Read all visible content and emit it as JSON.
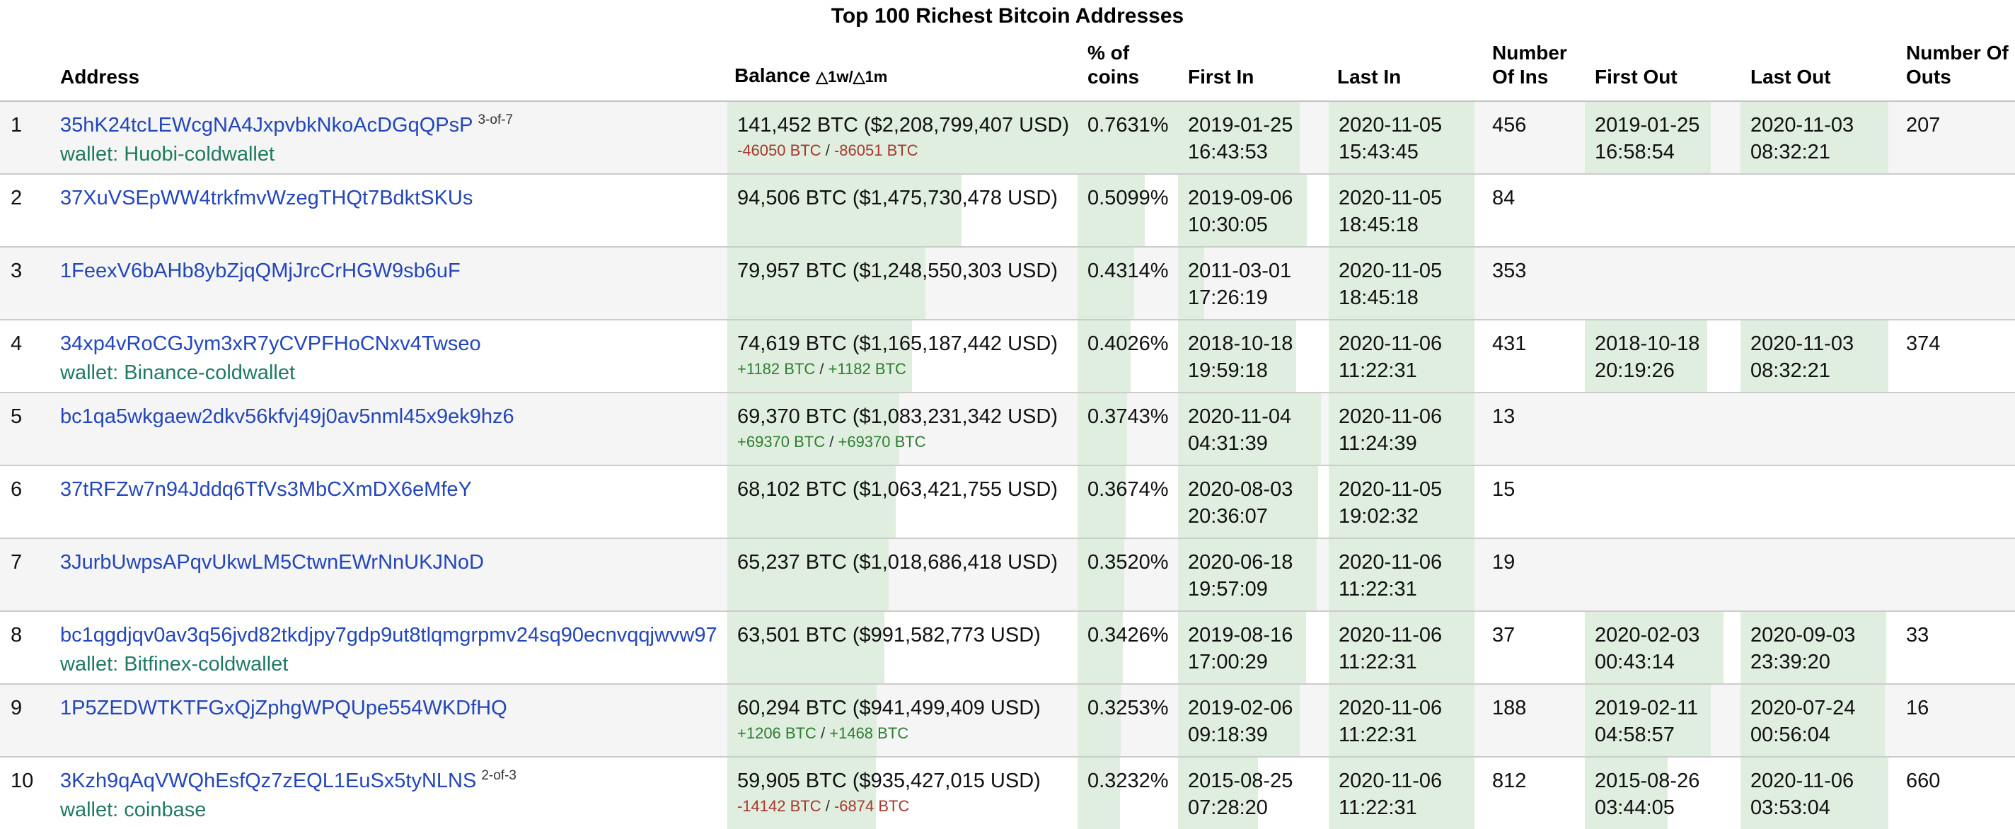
{
  "title": "Top 100 Richest Bitcoin Addresses",
  "columns": {
    "address": "Address",
    "balance": "Balance",
    "balance_delta": "△1w/△1m",
    "pct": "% of coins",
    "first_in": "First In",
    "last_in": "Last In",
    "ins": "Number Of Ins",
    "first_out": "First Out",
    "last_out": "Last Out",
    "outs": "Number Of Outs"
  },
  "colors": {
    "bar_green": "#dfeede",
    "row_alt": "#f4f5f4",
    "link_blue": "#2346bb",
    "wallet_green": "#1f7a60",
    "delta_red": "#a6382e",
    "delta_green": "#2e7d32"
  },
  "wallet_prefix": "wallet: ",
  "bar_scale": {
    "max_btc": 141452,
    "max_pct": 0.7631,
    "date_min": "2009-01-03",
    "date_max": "2020-11-06"
  },
  "rows": [
    {
      "rank": "1",
      "address": "35hK24tcLEWcgNA4JxpvbkNkoAcDGqQPsP",
      "address_note": "3-of-7",
      "wallet": "Huobi-coldwallet",
      "balance_text": "141,452 BTC ($2,208,799,407 USD)",
      "balance_btc": 141452,
      "delta_1w": "-46050 BTC",
      "delta_1m": "-86051 BTC",
      "pct_text": "0.7631%",
      "pct_value": 0.7631,
      "first_in": "2019-01-25 16:43:53",
      "last_in": "2020-11-05 15:43:45",
      "ins": "456",
      "first_out": "2019-01-25 16:58:54",
      "last_out": "2020-11-03 08:32:21",
      "outs": "207"
    },
    {
      "rank": "2",
      "address": "37XuVSEpWW4trkfmvWzegTHQt7BdktSKUs",
      "address_note": "",
      "wallet": "",
      "balance_text": "94,506 BTC ($1,475,730,478 USD)",
      "balance_btc": 94506,
      "delta_1w": "",
      "delta_1m": "",
      "pct_text": "0.5099%",
      "pct_value": 0.5099,
      "first_in": "2019-09-06 10:30:05",
      "last_in": "2020-11-05 18:45:18",
      "ins": "84",
      "first_out": "",
      "last_out": "",
      "outs": ""
    },
    {
      "rank": "3",
      "address": "1FeexV6bAHb8ybZjqQMjJrcCrHGW9sb6uF",
      "address_note": "",
      "wallet": "",
      "balance_text": "79,957 BTC ($1,248,550,303 USD)",
      "balance_btc": 79957,
      "delta_1w": "",
      "delta_1m": "",
      "pct_text": "0.4314%",
      "pct_value": 0.4314,
      "first_in": "2011-03-01 17:26:19",
      "last_in": "2020-11-05 18:45:18",
      "ins": "353",
      "first_out": "",
      "last_out": "",
      "outs": ""
    },
    {
      "rank": "4",
      "address": "34xp4vRoCGJym3xR7yCVPFHoCNxv4Twseo",
      "address_note": "",
      "wallet": "Binance-coldwallet",
      "balance_text": "74,619 BTC ($1,165,187,442 USD)",
      "balance_btc": 74619,
      "delta_1w": "+1182 BTC",
      "delta_1m": "+1182 BTC",
      "pct_text": "0.4026%",
      "pct_value": 0.4026,
      "first_in": "2018-10-18 19:59:18",
      "last_in": "2020-11-06 11:22:31",
      "ins": "431",
      "first_out": "2018-10-18 20:19:26",
      "last_out": "2020-11-03 08:32:21",
      "outs": "374"
    },
    {
      "rank": "5",
      "address": "bc1qa5wkgaew2dkv56kfvj49j0av5nml45x9ek9hz6",
      "address_note": "",
      "wallet": "",
      "balance_text": "69,370 BTC ($1,083,231,342 USD)",
      "balance_btc": 69370,
      "delta_1w": "+69370 BTC",
      "delta_1m": "+69370 BTC",
      "pct_text": "0.3743%",
      "pct_value": 0.3743,
      "first_in": "2020-11-04 04:31:39",
      "last_in": "2020-11-06 11:24:39",
      "ins": "13",
      "first_out": "",
      "last_out": "",
      "outs": ""
    },
    {
      "rank": "6",
      "address": "37tRFZw7n94Jddq6TfVs3MbCXmDX6eMfeY",
      "address_note": "",
      "wallet": "",
      "balance_text": "68,102 BTC ($1,063,421,755 USD)",
      "balance_btc": 68102,
      "delta_1w": "",
      "delta_1m": "",
      "pct_text": "0.3674%",
      "pct_value": 0.3674,
      "first_in": "2020-08-03 20:36:07",
      "last_in": "2020-11-05 19:02:32",
      "ins": "15",
      "first_out": "",
      "last_out": "",
      "outs": ""
    },
    {
      "rank": "7",
      "address": "3JurbUwpsAPqvUkwLM5CtwnEWrNnUKJNoD",
      "address_note": "",
      "wallet": "",
      "balance_text": "65,237 BTC ($1,018,686,418 USD)",
      "balance_btc": 65237,
      "delta_1w": "",
      "delta_1m": "",
      "pct_text": "0.3520%",
      "pct_value": 0.352,
      "first_in": "2020-06-18 19:57:09",
      "last_in": "2020-11-06 11:22:31",
      "ins": "19",
      "first_out": "",
      "last_out": "",
      "outs": ""
    },
    {
      "rank": "8",
      "address": "bc1qgdjqv0av3q56jvd82tkdjpy7gdp9ut8tlqmgrpmv24sq90ecnvqqjwvw97",
      "address_note": "",
      "wallet": "Bitfinex-coldwallet",
      "balance_text": "63,501 BTC ($991,582,773 USD)",
      "balance_btc": 63501,
      "delta_1w": "",
      "delta_1m": "",
      "pct_text": "0.3426%",
      "pct_value": 0.3426,
      "first_in": "2019-08-16 17:00:29",
      "last_in": "2020-11-06 11:22:31",
      "ins": "37",
      "first_out": "2020-02-03 00:43:14",
      "last_out": "2020-09-03 23:39:20",
      "outs": "33"
    },
    {
      "rank": "9",
      "address": "1P5ZEDWTKTFGxQjZphgWPQUpe554WKDfHQ",
      "address_note": "",
      "wallet": "",
      "balance_text": "60,294 BTC ($941,499,409 USD)",
      "balance_btc": 60294,
      "delta_1w": "+1206 BTC",
      "delta_1m": "+1468 BTC",
      "pct_text": "0.3253%",
      "pct_value": 0.3253,
      "first_in": "2019-02-06 09:18:39",
      "last_in": "2020-11-06 11:22:31",
      "ins": "188",
      "first_out": "2019-02-11 04:58:57",
      "last_out": "2020-07-24 00:56:04",
      "outs": "16"
    },
    {
      "rank": "10",
      "address": "3Kzh9qAqVWQhEsfQz7zEQL1EuSx5tyNLNS",
      "address_note": "2-of-3",
      "wallet": "coinbase",
      "balance_text": "59,905 BTC ($935,427,015 USD)",
      "balance_btc": 59905,
      "delta_1w": "-14142 BTC",
      "delta_1m": "-6874 BTC",
      "pct_text": "0.3232%",
      "pct_value": 0.3232,
      "first_in": "2015-08-25 07:28:20",
      "last_in": "2020-11-06 11:22:31",
      "ins": "812",
      "first_out": "2015-08-26 03:44:05",
      "last_out": "2020-11-06 03:53:04",
      "outs": "660"
    }
  ]
}
